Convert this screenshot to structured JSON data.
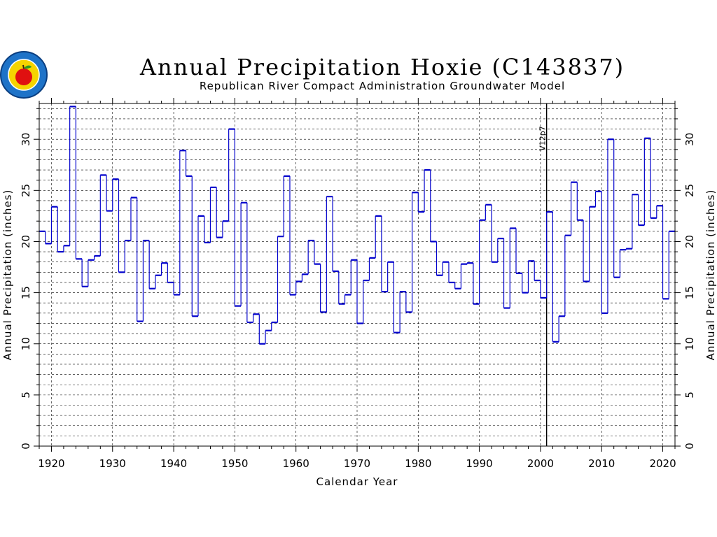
{
  "chart_data": {
    "type": "line",
    "step": true,
    "title": "Annual Precipitation Hoxie (C143837)",
    "subtitle": "Republican River Compact Administration Groundwater Model",
    "xlabel": "Calendar Year",
    "ylabel": "Annual Precipitation (inches)",
    "xlim": [
      1918,
      2022
    ],
    "ylim": [
      0,
      33.5
    ],
    "xticks": [
      1920,
      1930,
      1940,
      1950,
      1960,
      1970,
      1980,
      1990,
      2000,
      2010,
      2020
    ],
    "yticks": [
      0,
      5,
      10,
      15,
      20,
      25,
      30
    ],
    "grid": true,
    "series_color": "#0000cc",
    "marker_line": {
      "x": 2001,
      "label": "V12p7"
    },
    "series": [
      {
        "x": [
          1918,
          1919,
          1920,
          1921,
          1922,
          1923,
          1924,
          1925,
          1926,
          1927,
          1928,
          1929,
          1930,
          1931,
          1932,
          1933,
          1934,
          1935,
          1936,
          1937,
          1938,
          1939,
          1940,
          1941,
          1942,
          1943,
          1944,
          1945,
          1946,
          1947,
          1948,
          1949,
          1950,
          1951,
          1952,
          1953,
          1954,
          1955,
          1956,
          1957,
          1958,
          1959,
          1960,
          1961,
          1962,
          1963,
          1964,
          1965,
          1966,
          1967,
          1968,
          1969,
          1970,
          1971,
          1972,
          1973,
          1974,
          1975,
          1976,
          1977,
          1978,
          1979,
          1980,
          1981,
          1982,
          1983,
          1984,
          1985,
          1986,
          1987,
          1988,
          1989,
          1990,
          1991,
          1992,
          1993,
          1994,
          1995,
          1996,
          1997,
          1998,
          1999,
          2000,
          2001,
          2002,
          2003,
          2004,
          2005,
          2006,
          2007,
          2008,
          2009,
          2010,
          2011,
          2012,
          2013,
          2014,
          2015,
          2016,
          2017,
          2018,
          2019,
          2020,
          2021
        ],
        "values": [
          21.0,
          19.8,
          23.4,
          19.0,
          19.6,
          33.2,
          18.3,
          15.6,
          18.2,
          18.6,
          26.5,
          23.0,
          26.1,
          17.0,
          20.1,
          24.3,
          12.2,
          20.1,
          15.4,
          16.7,
          17.9,
          16.0,
          14.8,
          28.9,
          26.4,
          12.7,
          22.5,
          19.9,
          25.3,
          20.4,
          22.0,
          31.0,
          13.7,
          23.8,
          12.1,
          12.9,
          10.0,
          11.3,
          12.1,
          20.5,
          26.4,
          14.8,
          16.1,
          16.8,
          20.1,
          17.8,
          13.1,
          24.4,
          17.1,
          13.9,
          14.8,
          18.2,
          12.0,
          16.2,
          18.4,
          22.5,
          15.1,
          18.0,
          11.1,
          15.1,
          13.1,
          24.8,
          22.9,
          27.0,
          20.0,
          16.7,
          18.0,
          16.0,
          15.4,
          17.8,
          17.9,
          13.9,
          22.1,
          23.6,
          18.0,
          20.3,
          13.5,
          21.3,
          16.9,
          15.0,
          18.1,
          16.2,
          14.5,
          22.9,
          10.2,
          12.7,
          20.6,
          25.8,
          22.1,
          16.1,
          23.4,
          24.9,
          13.0,
          30.0,
          16.5,
          19.2,
          19.3,
          24.6,
          21.6,
          30.1,
          22.3,
          23.5,
          14.4,
          21.0
        ]
      }
    ]
  }
}
